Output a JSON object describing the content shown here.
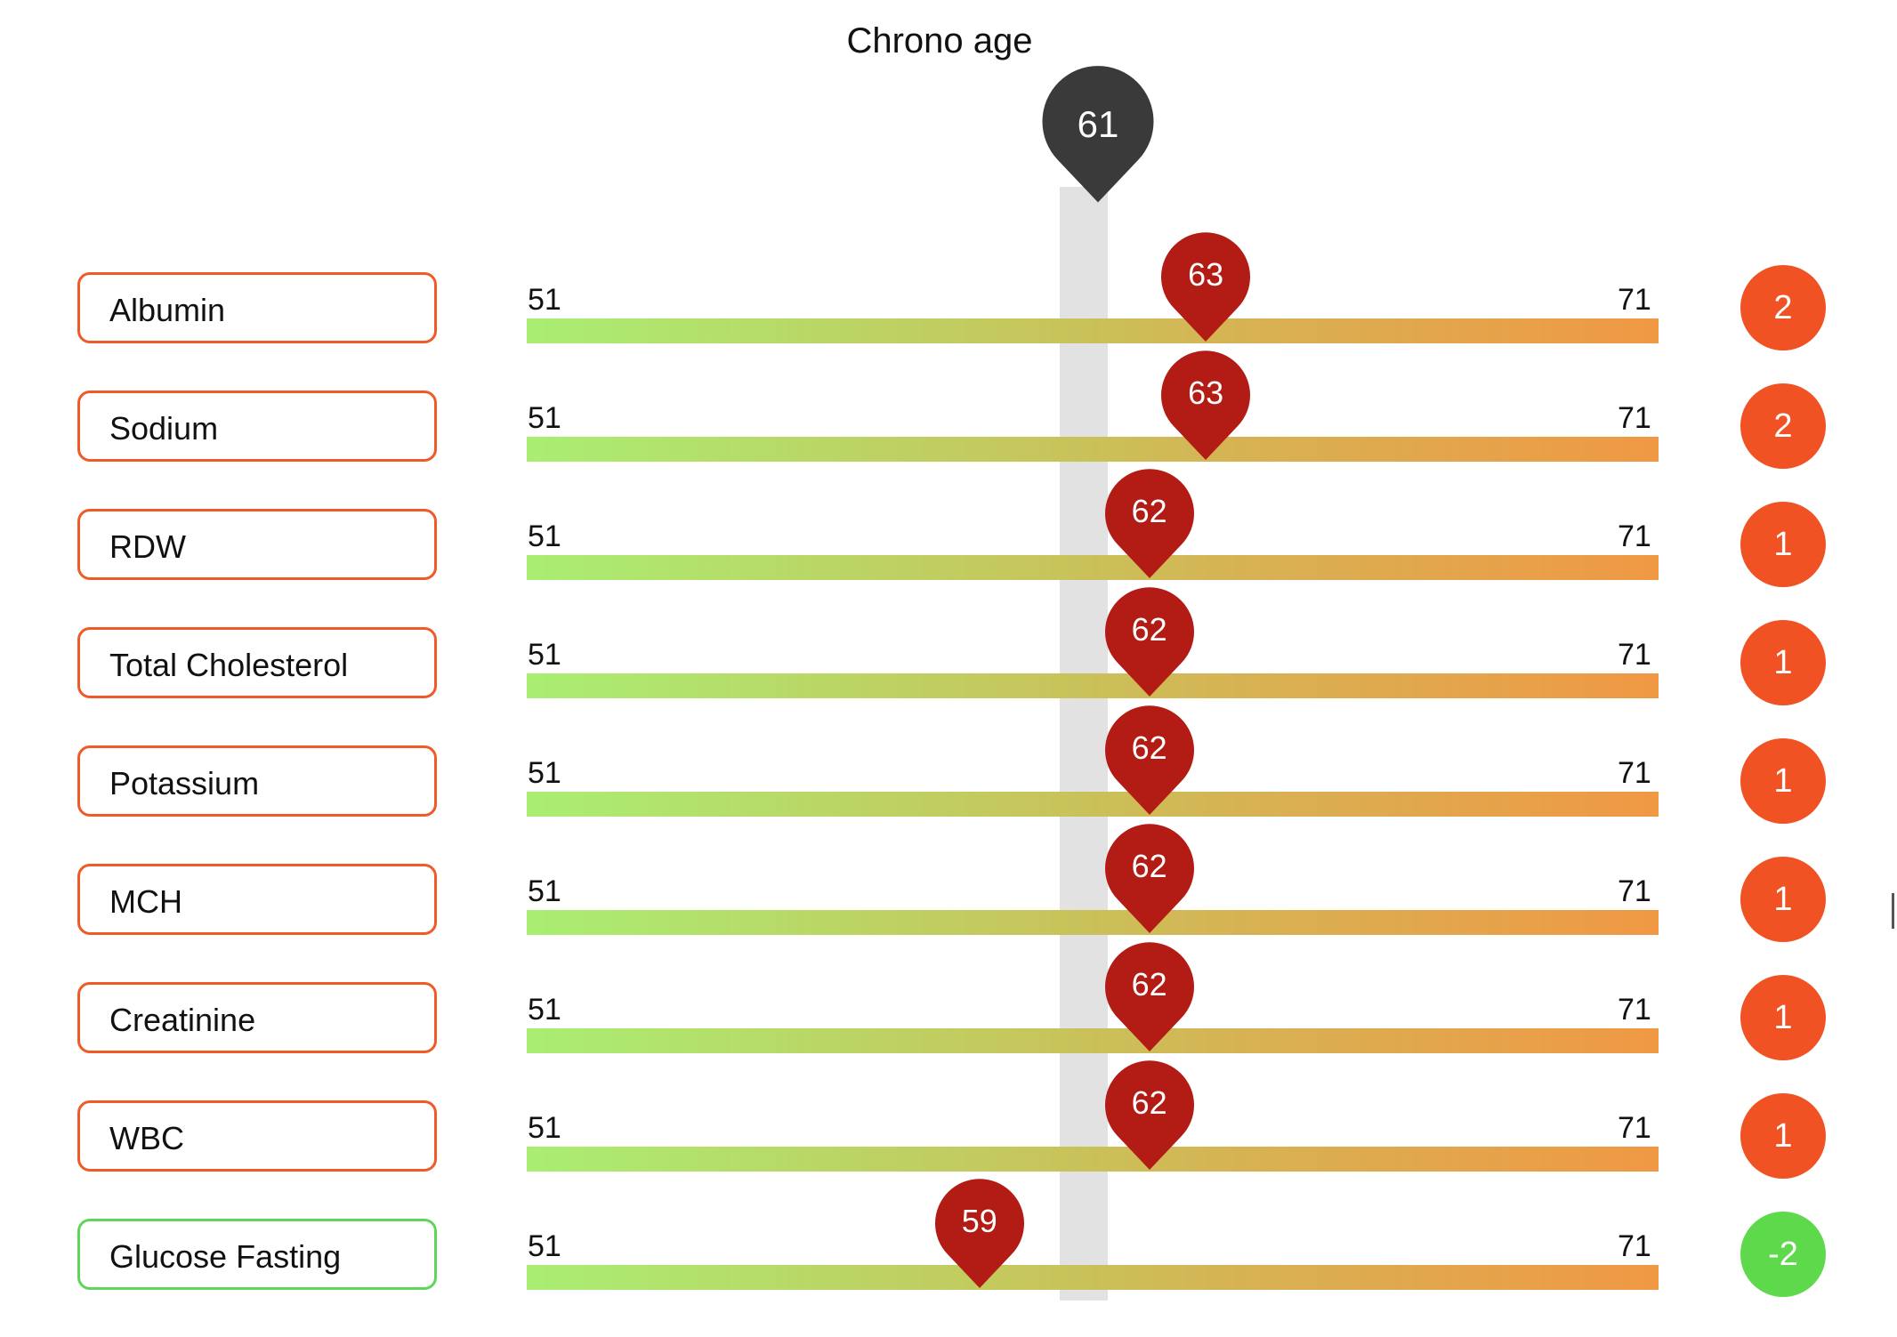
{
  "chart_data": {
    "type": "scatter",
    "title": "Chrono age",
    "reference": {
      "label": "Chrono age",
      "value": 61
    },
    "xlim": [
      51,
      71
    ],
    "axis_min_label": "51",
    "axis_max_label": "71",
    "colors": {
      "scale_low": "#a9ee73",
      "scale_high": "#f09844",
      "marker": "#b31b15",
      "chrono_marker": "#3a3a3a",
      "older": "#f05223",
      "younger": "#5fd94c"
    },
    "rows": [
      {
        "name": "Albumin",
        "value": 63,
        "delta": "2",
        "status": "older"
      },
      {
        "name": "Sodium",
        "value": 63,
        "delta": "2",
        "status": "older"
      },
      {
        "name": "RDW",
        "value": 62,
        "delta": "1",
        "status": "older"
      },
      {
        "name": "Total Cholesterol",
        "value": 62,
        "delta": "1",
        "status": "older"
      },
      {
        "name": "Potassium",
        "value": 62,
        "delta": "1",
        "status": "older"
      },
      {
        "name": "MCH",
        "value": 62,
        "delta": "1",
        "status": "older"
      },
      {
        "name": "Creatinine",
        "value": 62,
        "delta": "1",
        "status": "older"
      },
      {
        "name": "WBC",
        "value": 62,
        "delta": "1",
        "status": "older"
      },
      {
        "name": "Glucose Fasting",
        "value": 59,
        "delta": "-2",
        "status": "younger"
      }
    ]
  }
}
